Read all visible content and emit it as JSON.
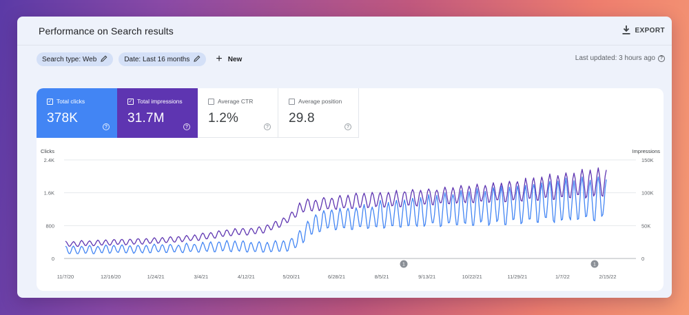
{
  "header": {
    "title": "Performance on Search results",
    "export_label": "EXPORT",
    "export_icon": "download-icon"
  },
  "filters": {
    "search_type": "Search type: Web",
    "date": "Date: Last 16 months",
    "new_label": "New",
    "last_updated": "Last updated: 3 hours ago"
  },
  "metrics": [
    {
      "label": "Total clicks",
      "value": "378K",
      "checked": true,
      "color": "#4285f4"
    },
    {
      "label": "Total impressions",
      "value": "31.7M",
      "checked": true,
      "color": "#5e35b1"
    },
    {
      "label": "Average CTR",
      "value": "1.2%",
      "checked": false
    },
    {
      "label": "Average position",
      "value": "29.8",
      "checked": false
    }
  ],
  "chart_data": {
    "type": "line",
    "left_axis": {
      "title": "Clicks",
      "ticks": [
        "0",
        "800",
        "1.6K",
        "2.4K"
      ],
      "values": [
        0,
        800,
        1600,
        2400
      ],
      "range": [
        0,
        2400
      ]
    },
    "right_axis": {
      "title": "Impressions",
      "ticks": [
        "0",
        "50K",
        "100K",
        "150K"
      ],
      "values": [
        0,
        50000,
        100000,
        150000
      ],
      "range": [
        0,
        150000
      ]
    },
    "x_ticks": [
      "11/7/20",
      "12/16/20",
      "1/24/21",
      "3/4/21",
      "4/12/21",
      "5/20/21",
      "6/28/21",
      "8/5/21",
      "9/13/21",
      "10/22/21",
      "11/29/21",
      "1/7/22",
      "2/15/22"
    ],
    "annotations": [
      {
        "label": "1",
        "date": "8/12/21"
      },
      {
        "label": "1",
        "date": "2/4/22"
      }
    ],
    "series": [
      {
        "axis": "left",
        "color": "#4285f4",
        "weekly_low": [
          100,
          110,
          110,
          120,
          120,
          130,
          130,
          140,
          130,
          130,
          140,
          150,
          150,
          140,
          140,
          150,
          150,
          160,
          160,
          170,
          170,
          170,
          160,
          160,
          150,
          150,
          160,
          170,
          180,
          300,
          500,
          600,
          700,
          700,
          700,
          700,
          700,
          720,
          720,
          720,
          750,
          750,
          760,
          760,
          760,
          780,
          780,
          780,
          780,
          800,
          800,
          820,
          820,
          820,
          850,
          850,
          860,
          860,
          880,
          880,
          900,
          900,
          900,
          920,
          920,
          920,
          950,
          950
        ],
        "weekly_high": [
          300,
          300,
          300,
          310,
          310,
          320,
          330,
          330,
          320,
          320,
          330,
          340,
          350,
          340,
          340,
          360,
          360,
          380,
          400,
          420,
          430,
          430,
          420,
          400,
          400,
          400,
          420,
          450,
          480,
          700,
          900,
          1100,
          1150,
          1200,
          1200,
          1250,
          1250,
          1300,
          1300,
          1400,
          1400,
          1400,
          1450,
          1450,
          1500,
          1500,
          1550,
          1550,
          1600,
          1600,
          1650,
          1650,
          1650,
          1700,
          1700,
          1750,
          1750,
          1800,
          1800,
          1850,
          1850,
          1900,
          1900,
          1900,
          1950,
          1950,
          1950,
          1950
        ]
      },
      {
        "axis": "right",
        "color": "#5e35b1",
        "weekly_low": [
          18000,
          18000,
          19000,
          19000,
          20000,
          20000,
          21000,
          21000,
          21000,
          22000,
          22000,
          23000,
          24000,
          24000,
          25000,
          26000,
          27000,
          28000,
          30000,
          32000,
          34000,
          35000,
          36000,
          36000,
          38000,
          40000,
          45000,
          50000,
          58000,
          68000,
          72000,
          72000,
          74000,
          75000,
          75000,
          76000,
          76000,
          77000,
          77000,
          78000,
          78000,
          79000,
          79000,
          80000,
          80000,
          81000,
          82000,
          82000,
          83000,
          84000,
          84000,
          85000,
          85000,
          86000,
          86000,
          87000,
          87000,
          88000,
          88000,
          89000,
          90000,
          90000,
          91000,
          92000,
          92000,
          93000,
          94000,
          94000
        ],
        "weekly_high": [
          26000,
          26000,
          27000,
          27000,
          28000,
          28000,
          29000,
          29000,
          30000,
          30000,
          31000,
          31000,
          32000,
          33000,
          34000,
          35000,
          36000,
          38000,
          40000,
          42000,
          44000,
          45000,
          46000,
          46000,
          48000,
          52000,
          56000,
          62000,
          70000,
          85000,
          90000,
          90000,
          92000,
          93000,
          95000,
          97000,
          99000,
          100000,
          100000,
          101000,
          101000,
          102000,
          103000,
          104000,
          104000,
          105000,
          106000,
          107000,
          108000,
          110000,
          111000,
          112000,
          113000,
          114000,
          115000,
          116000,
          118000,
          120000,
          122000,
          124000,
          126000,
          128000,
          130000,
          132000,
          134000,
          135000,
          135000,
          135000
        ]
      }
    ]
  }
}
